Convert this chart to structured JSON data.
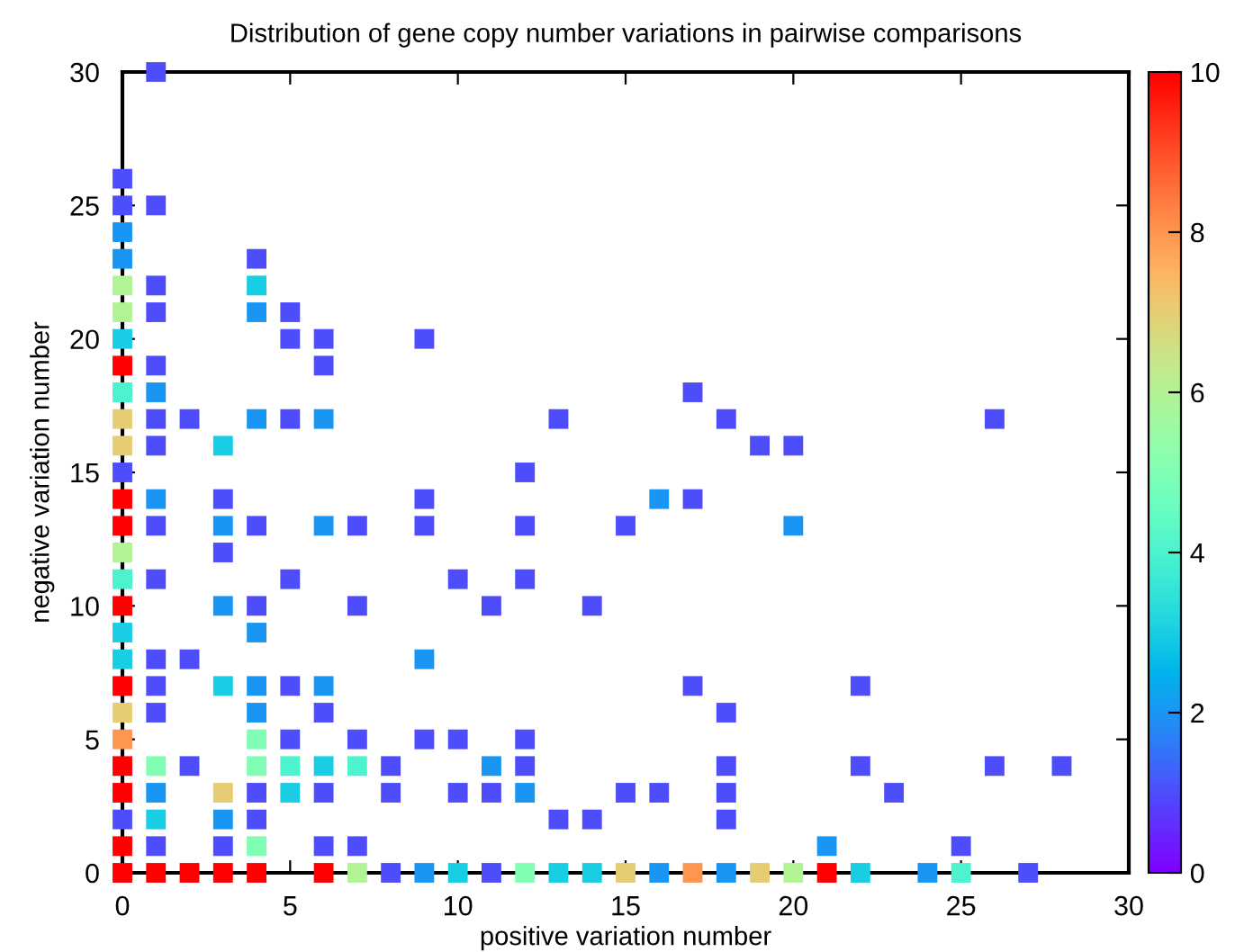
{
  "chart_data": {
    "type": "scatter",
    "title": "Distribution of gene copy number variations in pairwise comparisons",
    "xlabel": "positive variation number",
    "ylabel": "negative variation number",
    "series": [
      {
        "x": [
          0,
          0,
          0,
          0,
          0,
          0,
          0,
          0,
          0,
          0,
          0,
          0,
          0,
          0,
          0,
          0,
          0,
          0,
          0,
          0,
          0,
          0,
          0,
          0,
          0,
          0,
          0,
          1,
          1,
          1,
          1,
          1,
          1,
          1,
          1,
          1,
          1,
          1,
          1,
          1,
          1,
          1,
          1,
          1,
          1,
          1,
          2,
          2,
          2,
          2,
          3,
          3,
          3,
          3,
          3,
          3,
          3,
          3,
          3,
          3,
          4,
          4,
          4,
          4,
          4,
          4,
          4,
          4,
          4,
          4,
          4,
          4,
          4,
          4,
          4,
          5,
          5,
          5,
          5,
          5,
          5,
          5,
          5,
          6,
          6,
          6,
          6,
          6,
          6,
          6,
          6,
          6,
          6,
          7,
          7,
          7,
          7,
          7,
          7,
          8,
          8,
          8,
          9,
          9,
          9,
          9,
          9,
          9,
          10,
          10,
          10,
          10,
          11,
          11,
          11,
          11,
          12,
          12,
          12,
          12,
          12,
          12,
          12,
          13,
          13,
          13,
          14,
          14,
          14,
          15,
          15,
          15,
          16,
          16,
          16,
          17,
          17,
          17,
          17,
          18,
          18,
          18,
          18,
          18,
          18,
          19,
          19,
          20,
          20,
          20,
          21,
          21,
          22,
          22,
          22,
          23,
          24,
          25,
          25,
          26,
          26,
          27,
          28
        ],
        "values": [
          26,
          25,
          24,
          23,
          22,
          21,
          20,
          19,
          18,
          17,
          16,
          15,
          14,
          13,
          12,
          11,
          10,
          9,
          8,
          7,
          6,
          5,
          4,
          3,
          2,
          1,
          0,
          30,
          25,
          22,
          21,
          19,
          18,
          17,
          16,
          14,
          13,
          11,
          8,
          7,
          6,
          4,
          3,
          2,
          1,
          0,
          17,
          8,
          4,
          0,
          16,
          14,
          13,
          12,
          10,
          7,
          3,
          2,
          1,
          0,
          23,
          22,
          21,
          17,
          13,
          10,
          9,
          7,
          6,
          5,
          4,
          3,
          2,
          1,
          0,
          21,
          20,
          17,
          11,
          7,
          5,
          4,
          3,
          20,
          19,
          17,
          13,
          7,
          6,
          4,
          3,
          1,
          0,
          13,
          10,
          5,
          4,
          1,
          0,
          4,
          3,
          0,
          20,
          14,
          13,
          8,
          5,
          0,
          11,
          5,
          3,
          0,
          10,
          4,
          3,
          0,
          15,
          13,
          11,
          5,
          4,
          3,
          0,
          17,
          2,
          0,
          10,
          2,
          0,
          13,
          3,
          0,
          14,
          3,
          0,
          18,
          14,
          7,
          0,
          17,
          6,
          4,
          3,
          2,
          0,
          16,
          0,
          16,
          13,
          0,
          1,
          0,
          7,
          4,
          0,
          3,
          0,
          1,
          0,
          17,
          4,
          0,
          4
        ],
        "cvalues": [
          1,
          1,
          2,
          2,
          6,
          6,
          3,
          10,
          4,
          7,
          7,
          1,
          10,
          10,
          6,
          4,
          10,
          3,
          3,
          10,
          7,
          8,
          10,
          10,
          1,
          10,
          10,
          1,
          1,
          1,
          1,
          1,
          2,
          1,
          1,
          2,
          1,
          1,
          1,
          1,
          1,
          5,
          2,
          3,
          1,
          10,
          1,
          1,
          1,
          10,
          3,
          1,
          2,
          1,
          2,
          3,
          7,
          2,
          1,
          10,
          1,
          3,
          2,
          2,
          1,
          1,
          2,
          2,
          2,
          5,
          5,
          1,
          1,
          5,
          10,
          1,
          1,
          1,
          1,
          1,
          1,
          4,
          3,
          1,
          1,
          2,
          2,
          2,
          1,
          3,
          1,
          1,
          10,
          1,
          1,
          1,
          4,
          1,
          6,
          1,
          1,
          1,
          1,
          1,
          1,
          2,
          1,
          2,
          1,
          1,
          1,
          3,
          1,
          2,
          1,
          1,
          1,
          1,
          1,
          1,
          1,
          2,
          5,
          1,
          1,
          3,
          1,
          1,
          3,
          1,
          1,
          7,
          2,
          1,
          2,
          1,
          1,
          1,
          8,
          1,
          1,
          1,
          1,
          1,
          2,
          1,
          7,
          1,
          2,
          6,
          2,
          10,
          1,
          1,
          3,
          1,
          2,
          1,
          4,
          1,
          1,
          1,
          1
        ]
      }
    ],
    "marker": "square",
    "xlim": [
      0,
      30
    ],
    "ylim": [
      0,
      30
    ],
    "xticks": [
      0,
      5,
      10,
      15,
      20,
      25,
      30
    ],
    "yticks": [
      0,
      5,
      10,
      15,
      20,
      25,
      30
    ],
    "clim": [
      0,
      10
    ],
    "cticks": [
      0,
      2,
      4,
      6,
      8,
      10
    ],
    "grid": false,
    "legend": false
  }
}
